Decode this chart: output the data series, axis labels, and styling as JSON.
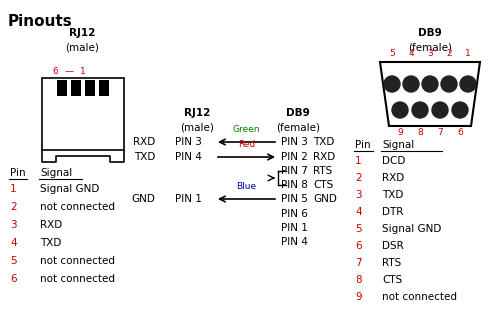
{
  "title": "Pinouts",
  "bg_color": "#ffffff",
  "text_color": "#000000",
  "red_color": "#cc0000",
  "green_color": "#008000",
  "blue_color": "#0000aa",
  "rj12_label": "RJ12",
  "rj12_sub": "(male)",
  "db9_label": "DB9",
  "db9_sub": "(female)",
  "rj12_pinout_header_pin": "Pin",
  "rj12_pinout_header_signal": "Signal",
  "rj12_pinout": [
    [
      "1",
      "Signal GND"
    ],
    [
      "2",
      "not connected"
    ],
    [
      "3",
      "RXD"
    ],
    [
      "4",
      "TXD"
    ],
    [
      "5",
      "not connected"
    ],
    [
      "6",
      "not connected"
    ]
  ],
  "db9_pin_numbers_top": [
    "5",
    "4",
    "3",
    "2",
    "1"
  ],
  "db9_pin_numbers_bot": [
    "9",
    "8",
    "7",
    "6"
  ],
  "db9_pinout_header_pin": "Pin",
  "db9_pinout_header_signal": "Signal",
  "db9_pinout": [
    [
      "1",
      "DCD"
    ],
    [
      "2",
      "RXD"
    ],
    [
      "3",
      "TXD"
    ],
    [
      "4",
      "DTR"
    ],
    [
      "5",
      "Signal GND"
    ],
    [
      "6",
      "DSR"
    ],
    [
      "7",
      "RTS"
    ],
    [
      "8",
      "CTS"
    ],
    [
      "9",
      "not connected"
    ]
  ],
  "conn_rxd": {
    "left_sig": "RXD",
    "left_pin": "PIN 3",
    "right_pin": "PIN 3",
    "right_sig": "TXD",
    "wire_color": "#008000",
    "label": "Green"
  },
  "conn_txd": {
    "left_sig": "TXD",
    "left_pin": "PIN 4",
    "right_pin": "PIN 2",
    "right_sig": "RXD",
    "wire_color": "#cc0000",
    "label": "Red"
  },
  "conn_gnd": {
    "left_sig": "GND",
    "left_pin": "PIN 1",
    "right_pin": "PIN 5",
    "right_sig": "GND",
    "wire_color": "#0000aa",
    "label": "Blue"
  },
  "rts_pin": "PIN 7",
  "rts_sig": "RTS",
  "cts_pin": "PIN 8",
  "cts_sig": "CTS",
  "unconnected_db9_pins": [
    "PIN 6",
    "PIN 1",
    "PIN 4"
  ]
}
